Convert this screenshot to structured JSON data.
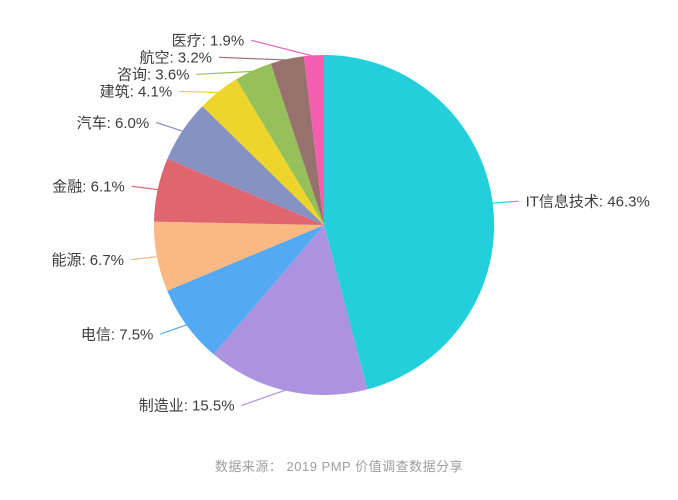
{
  "chart_data": {
    "type": "pie",
    "title": "",
    "legend_position": "none",
    "label_position": "outside",
    "label_format": "{name}: {value}%",
    "start_angle": "top",
    "direction": "clockwise",
    "slices": [
      {
        "label": "IT信息技术",
        "value": 46.3,
        "color": "#23CFDB"
      },
      {
        "label": "制造业",
        "value": 15.5,
        "color": "#AC92E0"
      },
      {
        "label": "电信",
        "value": 7.5,
        "color": "#54AAF2"
      },
      {
        "label": "能源",
        "value": 6.7,
        "color": "#FAB883"
      },
      {
        "label": "金融",
        "value": 6.1,
        "color": "#DF656F"
      },
      {
        "label": "汽车",
        "value": 6.0,
        "color": "#8692C1"
      },
      {
        "label": "建筑",
        "value": 4.1,
        "color": "#EED52B"
      },
      {
        "label": "咨询",
        "value": 3.6,
        "color": "#96C15A"
      },
      {
        "label": "航空",
        "value": 3.2,
        "color": "#97726D"
      },
      {
        "label": "医疗",
        "value": 1.9,
        "color": "#F35EB1"
      }
    ]
  },
  "source": {
    "text": "数据来源： 2019 PMP 价值调查数据分享"
  },
  "colors": {
    "label_text": "#3d3d3d",
    "source_text": "#9e9e9e",
    "background": "#ffffff"
  }
}
